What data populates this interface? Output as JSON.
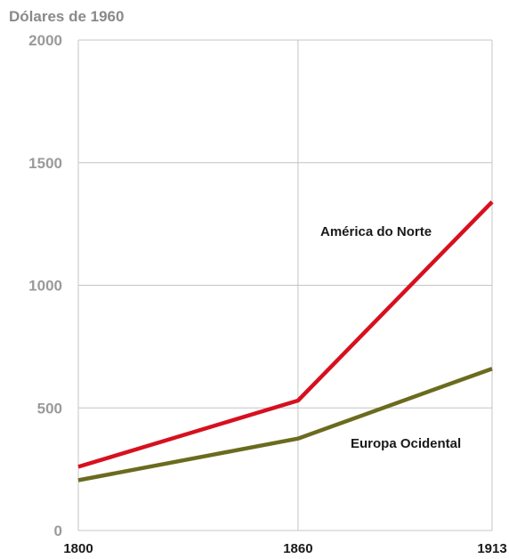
{
  "chart_data": {
    "type": "line",
    "title": "",
    "ylabel": "Dólares de 1960",
    "xlabel": "",
    "x": [
      1800,
      1860,
      1913
    ],
    "x_ticks": [
      "1800",
      "1860",
      "1913"
    ],
    "y_ticks": [
      "0",
      "500",
      "1000",
      "1500",
      "2000"
    ],
    "ylim": [
      0,
      2000
    ],
    "grid": true,
    "series": [
      {
        "name": "América do Norte",
        "values": [
          260,
          530,
          1340
        ],
        "color": "#d7101e"
      },
      {
        "name": "Europa Ocidental",
        "values": [
          205,
          375,
          660
        ],
        "color": "#6b6b1f"
      }
    ]
  }
}
